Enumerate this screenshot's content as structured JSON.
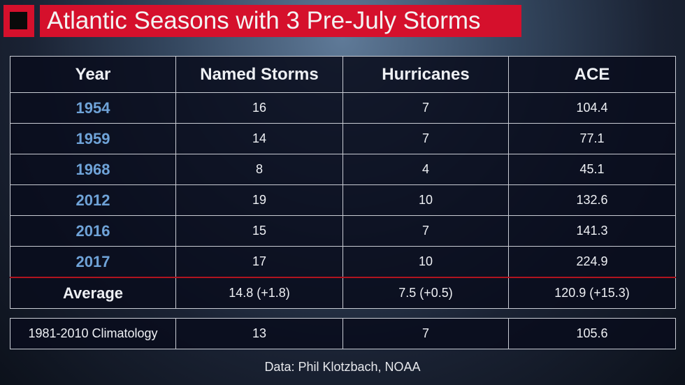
{
  "chart_data": {
    "type": "table",
    "title": "Atlantic Seasons with 3 Pre-July Storms",
    "columns": [
      "Year",
      "Named Storms",
      "Hurricanes",
      "ACE"
    ],
    "rows": [
      [
        "1954",
        "16",
        "7",
        "104.4"
      ],
      [
        "1959",
        "14",
        "7",
        "77.1"
      ],
      [
        "1968",
        "8",
        "4",
        "45.1"
      ],
      [
        "2012",
        "19",
        "10",
        "132.6"
      ],
      [
        "2016",
        "15",
        "7",
        "141.3"
      ],
      [
        "2017",
        "17",
        "10",
        "224.9"
      ]
    ],
    "average": [
      "Average",
      "14.8 (+1.8)",
      "7.5 (+0.5)",
      "120.9 (+15.3)"
    ],
    "climatology": [
      "1981-2010 Climatology",
      "13",
      "7",
      "105.6"
    ],
    "source": "Data: Phil Klotzbach, NOAA"
  },
  "colors": {
    "accent": "#d5102c",
    "year": "#6fa3d8",
    "divider": "#b0141f"
  }
}
